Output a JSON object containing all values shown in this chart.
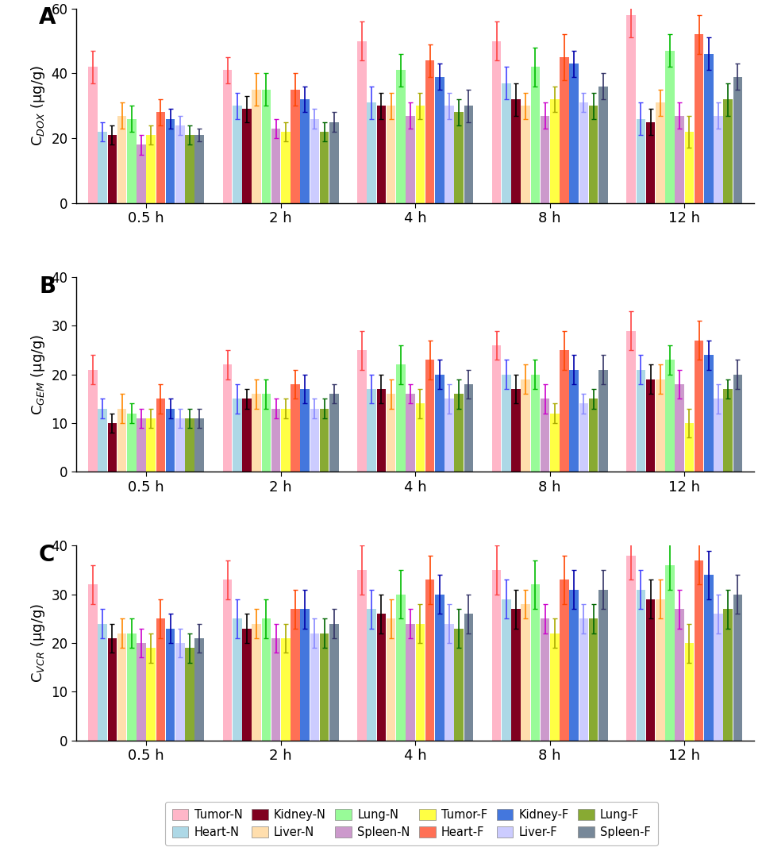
{
  "timepoints": [
    "0.5 h",
    "2 h",
    "4 h",
    "8 h",
    "12 h"
  ],
  "series_labels": [
    "Tumor-N",
    "Heart-N",
    "Kidney-N",
    "Liver-N",
    "Lung-N",
    "Spleen-N",
    "Tumor-F",
    "Heart-F",
    "Kidney-F",
    "Liver-F",
    "Lung-F",
    "Spleen-F"
  ],
  "colors": [
    "#FFB6C8",
    "#ADD8E6",
    "#800020",
    "#FFDEAD",
    "#98FB98",
    "#CC99CC",
    "#FFFF44",
    "#FF7055",
    "#4477DD",
    "#CCCCFF",
    "#88AA33",
    "#778899"
  ],
  "error_colors": [
    "#FF4444",
    "#4444FF",
    "#000000",
    "#FF8800",
    "#00BB00",
    "#CC00CC",
    "#AAAA00",
    "#FF4400",
    "#0000AA",
    "#8888FF",
    "#006600",
    "#333366"
  ],
  "panel_A": {
    "ylabel": "C$_{DOX}$ (μg/g)",
    "ylim": [
      0,
      60
    ],
    "yticks": [
      0,
      20,
      40,
      60
    ],
    "series_values": {
      "Tumor-N": [
        42,
        41,
        50,
        50,
        58
      ],
      "Heart-N": [
        22,
        30,
        31,
        37,
        26
      ],
      "Kidney-N": [
        21,
        29,
        30,
        32,
        25
      ],
      "Liver-N": [
        27,
        35,
        30,
        30,
        31
      ],
      "Lung-N": [
        26,
        35,
        41,
        42,
        47
      ],
      "Spleen-N": [
        18,
        23,
        27,
        27,
        27
      ],
      "Tumor-F": [
        21,
        22,
        30,
        32,
        22
      ],
      "Heart-F": [
        28,
        35,
        44,
        45,
        52
      ],
      "Kidney-F": [
        26,
        32,
        39,
        43,
        46
      ],
      "Liver-F": [
        24,
        26,
        30,
        31,
        27
      ],
      "Lung-F": [
        21,
        22,
        28,
        30,
        32
      ],
      "Spleen-F": [
        21,
        25,
        30,
        36,
        39
      ]
    },
    "series_errors": {
      "Tumor-N": [
        5,
        4,
        6,
        6,
        7
      ],
      "Heart-N": [
        3,
        4,
        5,
        5,
        5
      ],
      "Kidney-N": [
        3,
        4,
        4,
        5,
        4
      ],
      "Liver-N": [
        4,
        5,
        4,
        4,
        4
      ],
      "Lung-N": [
        4,
        5,
        5,
        6,
        5
      ],
      "Spleen-N": [
        3,
        3,
        4,
        4,
        4
      ],
      "Tumor-F": [
        3,
        3,
        4,
        4,
        5
      ],
      "Heart-F": [
        4,
        5,
        5,
        7,
        6
      ],
      "Kidney-F": [
        3,
        4,
        4,
        4,
        5
      ],
      "Liver-F": [
        3,
        3,
        4,
        3,
        4
      ],
      "Lung-F": [
        3,
        3,
        4,
        4,
        5
      ],
      "Spleen-F": [
        2,
        3,
        5,
        4,
        4
      ]
    }
  },
  "panel_B": {
    "ylabel": "C$_{GEM}$ (μg/g)",
    "ylim": [
      0,
      40
    ],
    "yticks": [
      0,
      10,
      20,
      30,
      40
    ],
    "series_values": {
      "Tumor-N": [
        21,
        22,
        25,
        26,
        29
      ],
      "Heart-N": [
        13,
        15,
        17,
        20,
        21
      ],
      "Kidney-N": [
        10,
        15,
        17,
        17,
        19
      ],
      "Liver-N": [
        13,
        16,
        16,
        19,
        19
      ],
      "Lung-N": [
        12,
        16,
        22,
        20,
        23
      ],
      "Spleen-N": [
        11,
        13,
        16,
        15,
        18
      ],
      "Tumor-F": [
        11,
        13,
        14,
        12,
        10
      ],
      "Heart-F": [
        15,
        18,
        23,
        25,
        27
      ],
      "Kidney-F": [
        13,
        17,
        20,
        21,
        24
      ],
      "Liver-F": [
        11,
        13,
        15,
        14,
        15
      ],
      "Lung-F": [
        11,
        13,
        16,
        15,
        17
      ],
      "Spleen-F": [
        11,
        16,
        18,
        21,
        20
      ]
    },
    "series_errors": {
      "Tumor-N": [
        3,
        3,
        4,
        3,
        4
      ],
      "Heart-N": [
        2,
        3,
        3,
        3,
        3
      ],
      "Kidney-N": [
        2,
        2,
        3,
        3,
        3
      ],
      "Liver-N": [
        3,
        3,
        3,
        3,
        3
      ],
      "Lung-N": [
        2,
        3,
        4,
        3,
        3
      ],
      "Spleen-N": [
        2,
        2,
        2,
        3,
        3
      ],
      "Tumor-F": [
        2,
        2,
        3,
        2,
        3
      ],
      "Heart-F": [
        3,
        3,
        4,
        4,
        4
      ],
      "Kidney-F": [
        2,
        3,
        3,
        3,
        3
      ],
      "Liver-F": [
        2,
        2,
        3,
        2,
        3
      ],
      "Lung-F": [
        2,
        2,
        3,
        2,
        2
      ],
      "Spleen-F": [
        2,
        2,
        3,
        3,
        3
      ]
    }
  },
  "panel_C": {
    "ylabel": "C$_{VCR}$ (μg/g)",
    "ylim": [
      0,
      40
    ],
    "yticks": [
      0,
      10,
      20,
      30,
      40
    ],
    "series_values": {
      "Tumor-N": [
        32,
        33,
        35,
        35,
        38
      ],
      "Heart-N": [
        24,
        25,
        27,
        29,
        31
      ],
      "Kidney-N": [
        21,
        23,
        26,
        27,
        29
      ],
      "Liver-N": [
        22,
        24,
        25,
        28,
        29
      ],
      "Lung-N": [
        22,
        25,
        30,
        32,
        36
      ],
      "Spleen-N": [
        20,
        21,
        24,
        25,
        27
      ],
      "Tumor-F": [
        19,
        21,
        24,
        22,
        20
      ],
      "Heart-F": [
        25,
        27,
        33,
        33,
        37
      ],
      "Kidney-F": [
        23,
        27,
        30,
        31,
        34
      ],
      "Liver-F": [
        20,
        22,
        24,
        25,
        26
      ],
      "Lung-F": [
        19,
        22,
        23,
        25,
        27
      ],
      "Spleen-F": [
        21,
        24,
        26,
        31,
        30
      ]
    },
    "series_errors": {
      "Tumor-N": [
        4,
        4,
        5,
        5,
        5
      ],
      "Heart-N": [
        3,
        4,
        4,
        4,
        4
      ],
      "Kidney-N": [
        3,
        3,
        4,
        4,
        4
      ],
      "Liver-N": [
        3,
        3,
        4,
        3,
        4
      ],
      "Lung-N": [
        3,
        4,
        5,
        5,
        5
      ],
      "Spleen-N": [
        3,
        3,
        3,
        3,
        4
      ],
      "Tumor-F": [
        3,
        3,
        4,
        3,
        4
      ],
      "Heart-F": [
        4,
        4,
        5,
        5,
        5
      ],
      "Kidney-F": [
        3,
        4,
        4,
        4,
        5
      ],
      "Liver-F": [
        3,
        3,
        4,
        3,
        4
      ],
      "Lung-F": [
        3,
        3,
        4,
        3,
        4
      ],
      "Spleen-F": [
        3,
        3,
        4,
        4,
        4
      ]
    }
  },
  "legend_order": [
    "Tumor-N",
    "Heart-N",
    "Kidney-N",
    "Liver-N",
    "Lung-N",
    "Spleen-N",
    "Tumor-F",
    "Heart-F",
    "Kidney-F",
    "Liver-F",
    "Lung-F",
    "Spleen-F"
  ]
}
